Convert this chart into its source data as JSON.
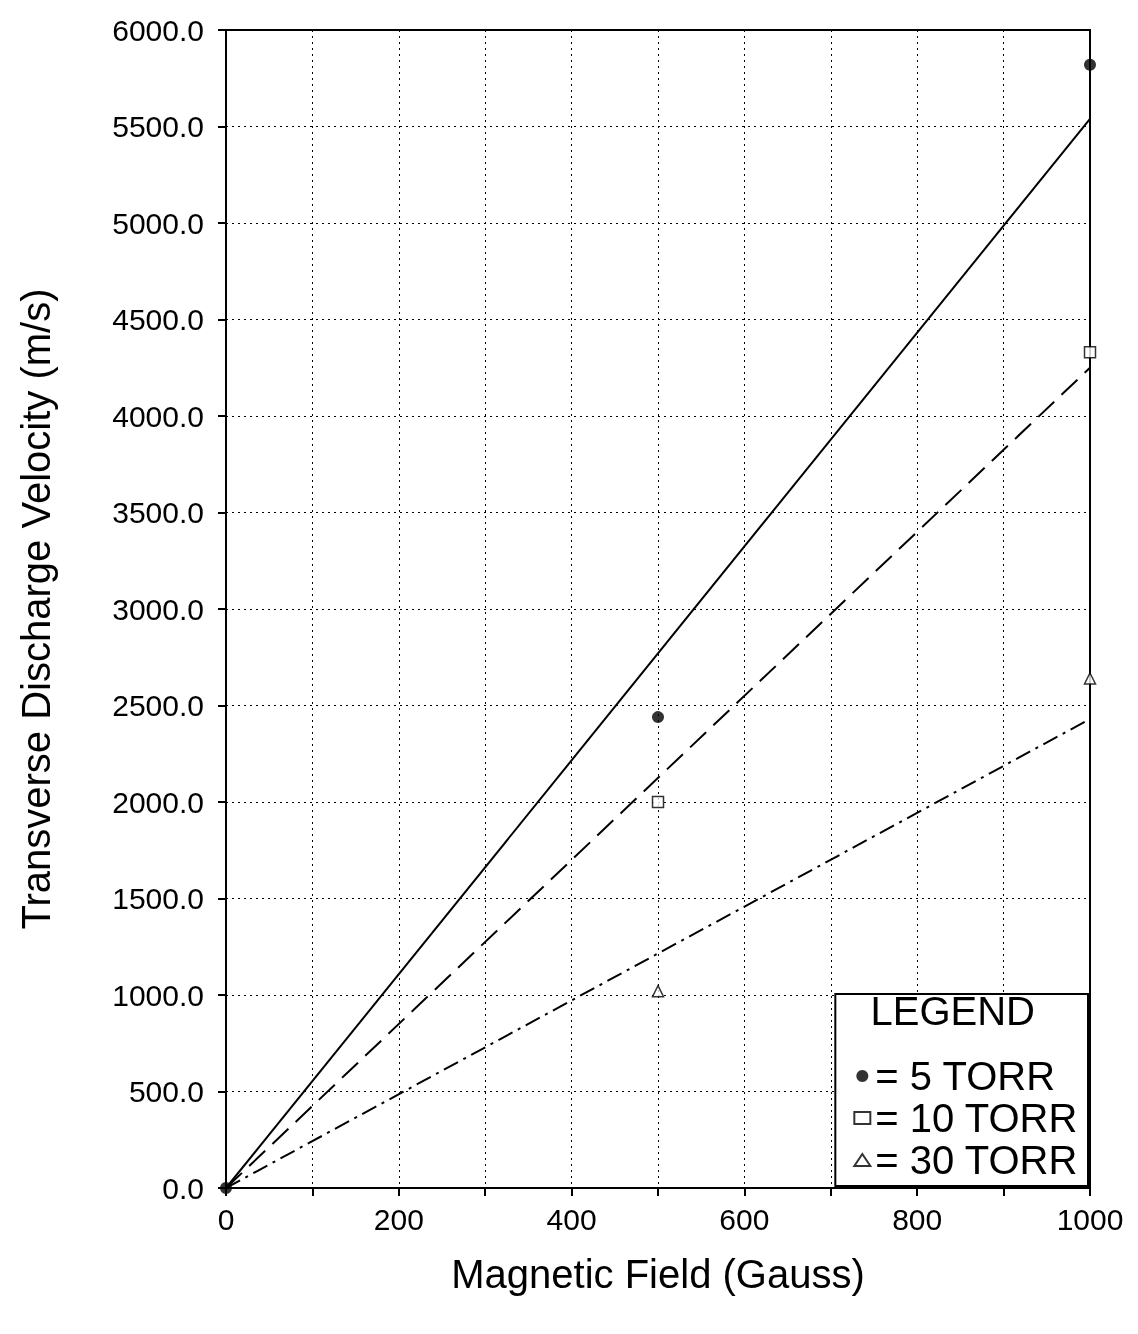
{
  "chart_data": {
    "type": "scatter",
    "xlabel": "Magnetic Field (Gauss)",
    "ylabel": "Transverse Discharge Velocity (m/s)",
    "legend_title": "LEGEND",
    "xlim": [
      0,
      1000
    ],
    "ylim": [
      0,
      6000
    ],
    "xticks": [
      0,
      {
        "value": 100,
        "label": null
      },
      200,
      {
        "value": 300,
        "label": null
      },
      400,
      {
        "value": 500,
        "label": null
      },
      600,
      {
        "value": 700,
        "label": null
      },
      800,
      {
        "value": 900,
        "label": null
      },
      1000
    ],
    "yticks": [
      {
        "value": 0,
        "label": "0.0"
      },
      {
        "value": 500,
        "label": "500.0"
      },
      {
        "value": 1000,
        "label": "1000.0"
      },
      {
        "value": 1500,
        "label": "1500.0"
      },
      {
        "value": 2000,
        "label": "2000.0"
      },
      {
        "value": 2500,
        "label": "2500.0"
      },
      {
        "value": 3000,
        "label": "3000.0"
      },
      {
        "value": 3500,
        "label": "3500.0"
      },
      {
        "value": 4000,
        "label": "4000.0"
      },
      {
        "value": 4500,
        "label": "4500.0"
      },
      {
        "value": 5000,
        "label": "5000.0"
      },
      {
        "value": 5500,
        "label": "5500.0"
      },
      {
        "value": 6000,
        "label": "6000.0"
      }
    ],
    "grid": true,
    "legend": "bottom right",
    "series": [
      {
        "name": "= 5 TORR",
        "marker": "circle",
        "color": "#000000",
        "x": [
          0,
          500,
          1000
        ],
        "values": [
          0,
          2440,
          5820
        ]
      },
      {
        "name": "= 10 TORR",
        "marker": "square",
        "color": "#000000",
        "x": [
          500,
          1000
        ],
        "values": [
          2000,
          4330
        ]
      },
      {
        "name": "= 30 TORR",
        "marker": "triangle",
        "color": "#000000",
        "x": [
          500,
          1000
        ],
        "values": [
          1020,
          2640
        ]
      },
      {
        "type": "line",
        "line_style": "solid",
        "color": "#000000",
        "x": [
          0,
          1000
        ],
        "values": [
          0,
          5540
        ]
      },
      {
        "type": "line",
        "line_style": "dashed",
        "color": "#000000",
        "x": [
          0,
          1000
        ],
        "values": [
          0,
          4250
        ]
      },
      {
        "type": "line",
        "line_style": "dashdot",
        "color": "#000000",
        "x": [
          0,
          1000
        ],
        "values": [
          0,
          2430
        ]
      }
    ]
  }
}
